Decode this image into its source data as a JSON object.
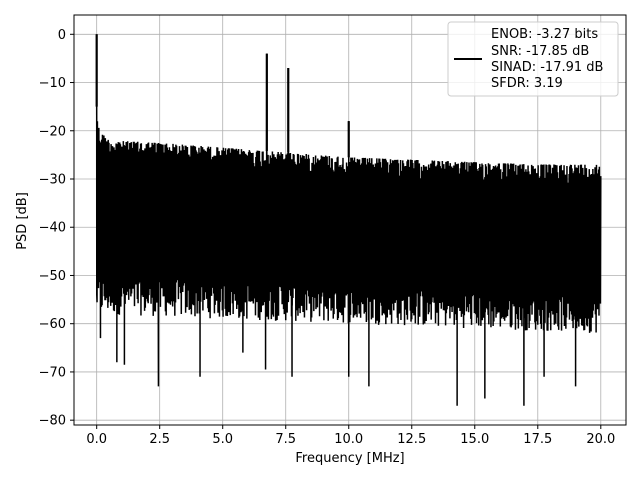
{
  "chart_data": {
    "type": "line",
    "xlabel": "Frequency [MHz]",
    "ylabel": "PSD [dB]",
    "xlim": [
      -0.9,
      21.0
    ],
    "ylim": [
      -81,
      4
    ],
    "xticks": [
      0.0,
      2.5,
      5.0,
      7.5,
      10.0,
      12.5,
      15.0,
      17.5,
      20.0
    ],
    "xtick_labels": [
      "0.0",
      "2.5",
      "5.0",
      "7.5",
      "10.0",
      "12.5",
      "15.0",
      "17.5",
      "20.0"
    ],
    "yticks": [
      0,
      -10,
      -20,
      -30,
      -40,
      -50,
      -60,
      -70,
      -80
    ],
    "ytick_labels": [
      "0",
      "−10",
      "−20",
      "−30",
      "−40",
      "−50",
      "−60",
      "−70",
      "−80"
    ],
    "grid": true,
    "legend_position": "top-right",
    "legend": [
      "ENOB: -3.27 bits",
      "SNR: -17.85 dB",
      "SINAD: -17.91 dB",
      "SFDR: 3.19"
    ],
    "line_color": "#000000",
    "x_range": [
      0.0,
      20.0
    ],
    "noise_upper": {
      "x": [
        0.0,
        0.1,
        0.5,
        2.5,
        5.0,
        7.5,
        10.0,
        12.5,
        15.0,
        17.5,
        20.0
      ],
      "y": [
        -15,
        -20,
        -22,
        -22.5,
        -23.5,
        -24.5,
        -25.5,
        -26,
        -26.5,
        -27,
        -27
      ]
    },
    "noise_lower": {
      "x": [
        0.0,
        20.0
      ],
      "y": [
        -54,
        -58
      ]
    },
    "peaks": [
      {
        "x": 0.0,
        "y": 0
      },
      {
        "x": 6.75,
        "y": -4
      },
      {
        "x": 7.6,
        "y": -7
      },
      {
        "x": 10.0,
        "y": -18
      }
    ],
    "dips": [
      {
        "x": 0.15,
        "y": -63
      },
      {
        "x": 0.8,
        "y": -68
      },
      {
        "x": 1.1,
        "y": -68.5
      },
      {
        "x": 2.45,
        "y": -73
      },
      {
        "x": 4.1,
        "y": -71
      },
      {
        "x": 5.8,
        "y": -66
      },
      {
        "x": 6.7,
        "y": -69.5
      },
      {
        "x": 7.75,
        "y": -71
      },
      {
        "x": 10.0,
        "y": -71
      },
      {
        "x": 10.8,
        "y": -73
      },
      {
        "x": 14.3,
        "y": -77
      },
      {
        "x": 15.4,
        "y": -75.5
      },
      {
        "x": 16.95,
        "y": -77
      },
      {
        "x": 17.75,
        "y": -71
      },
      {
        "x": 19.0,
        "y": -73
      }
    ]
  }
}
